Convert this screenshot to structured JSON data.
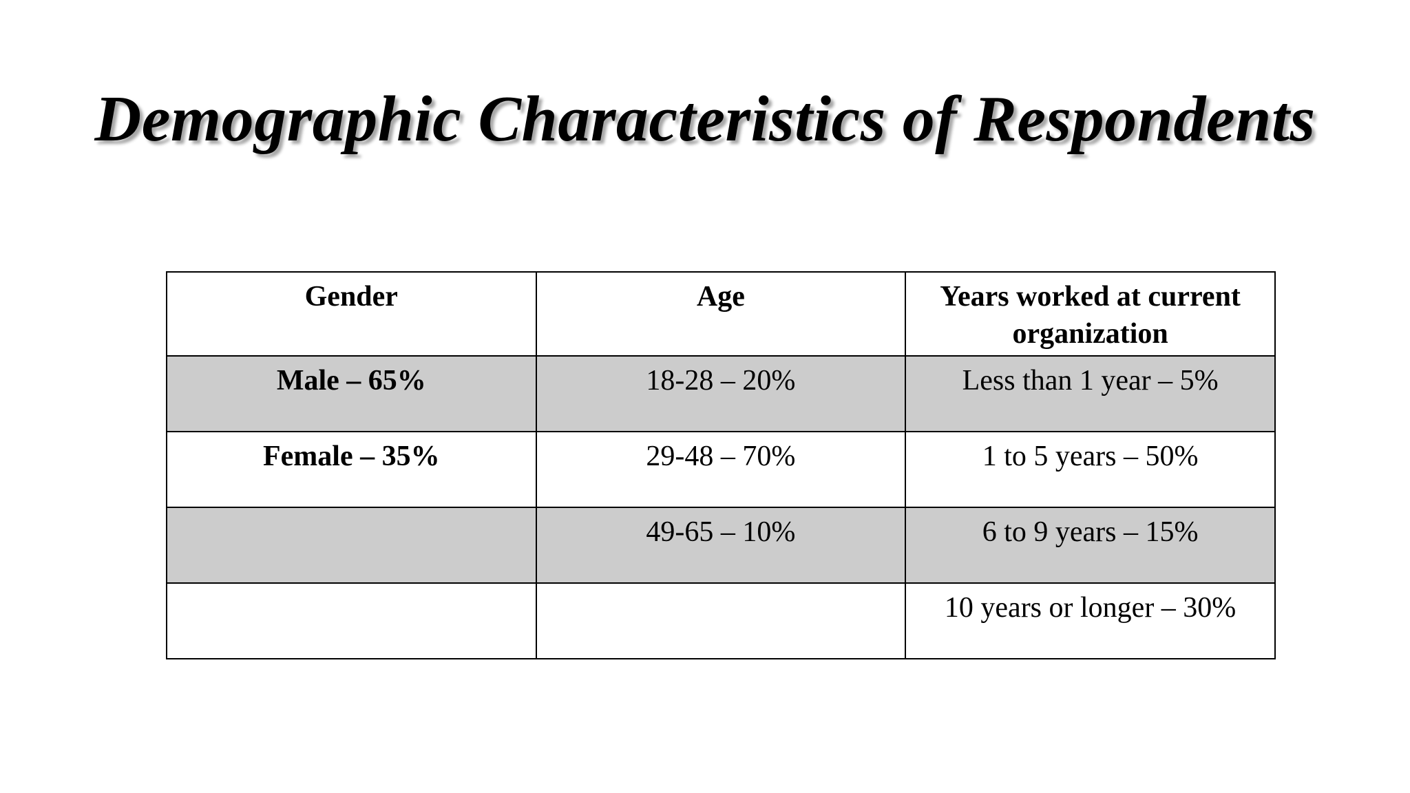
{
  "slide": {
    "title": "Demographic Characteristics of Respondents"
  },
  "table": {
    "headers": [
      "Gender",
      "Age",
      "Years worked at current organization"
    ],
    "rows": [
      [
        "Male – 65%",
        "18-28 – 20%",
        "Less than 1 year – 5%"
      ],
      [
        "Female – 35%",
        "29-48 – 70%",
        "1 to 5 years – 50%"
      ],
      [
        "",
        "49-65 – 10%",
        "6 to 9 years – 15%"
      ],
      [
        "",
        "",
        "10 years or longer – 30%"
      ]
    ],
    "shaded_row_color": "#cccccc",
    "border_color": "#000000"
  }
}
